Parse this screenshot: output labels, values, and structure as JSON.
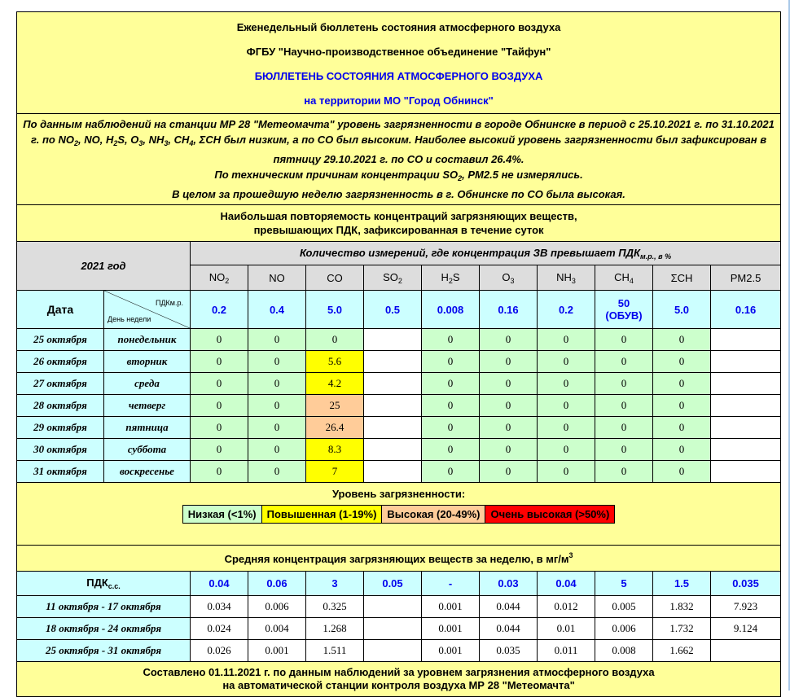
{
  "header": {
    "line1": "Еженедельный бюллетень состояния атмосферного воздуха",
    "line2": "ФГБУ \"Научно-производственное объединение \"Тайфун\"",
    "line3": "БЮЛЛЕТЕНЬ СОСТОЯНИЯ АТМОСФЕРНОГО ВОЗДУХА",
    "line4": "на территории МО \"Город Обнинск\""
  },
  "summary": {
    "p1a": "По данным наблюдений на станции МР 28 \"Метеомачта\" уровень загрязненности в городе Обнинске в период с 25.10.2021 г. по 31.10.2021 г. по NO",
    "p1b": ", NO, H",
    "p1c": "S, O",
    "p1d": ", NH",
    "p1e": ", CH",
    "p1f": ", ΣCH был низким, а по СО был высоким. Наиболее высокий уровень загрязненности был зафиксирован в пятницу 29.10.2021 г. по СО и составил 26.4%.",
    "p2a": "По техническим причинам концентрации SO",
    "p2b": ", PM2.5 не измерялись.",
    "p3": "В целом за прошедшую неделю загрязненность в г. Обнинске по СО была высокая.",
    "sub2": "2",
    "sub3": "3",
    "sub4": "4"
  },
  "daily": {
    "title1": "Наибольшая повторяемость концентраций загрязняющих веществ,",
    "title2": "превышающих ПДК, зафиксированная в течение суток",
    "year": "2021 год",
    "measure_label": "Количество измерений, где концентрация ЗВ превышает ПДК",
    "measure_sub": "м.р., в %",
    "pollutants": [
      {
        "base": "NO",
        "sub": "2"
      },
      {
        "base": "NO",
        "sub": ""
      },
      {
        "base": "CO",
        "sub": ""
      },
      {
        "base": "SO",
        "sub": "2"
      },
      {
        "base": "H",
        "sub": "2",
        "tail": "S"
      },
      {
        "base": "O",
        "sub": "3"
      },
      {
        "base": "NH",
        "sub": "3"
      },
      {
        "base": "CH",
        "sub": "4"
      },
      {
        "base": "ΣCH",
        "sub": ""
      },
      {
        "base": "PM2.5",
        "sub": ""
      }
    ],
    "date_label": "Дата",
    "diag_top": "ПДКм.р.",
    "diag_bottom": "День недели",
    "limits": [
      "0.2",
      "0.4",
      "5.0",
      "0.5",
      "0.008",
      "0.16",
      "0.2",
      "50\n(ОБУВ)",
      "5.0",
      "0.16"
    ],
    "limit_ch4_1": "50",
    "limit_ch4_2": "(ОБУВ)",
    "rows": [
      {
        "date": "25 октября",
        "day": "понедельник",
        "values": [
          "0",
          "0",
          "0",
          "",
          "0",
          "0",
          "0",
          "0",
          "0",
          ""
        ],
        "co_level": "low"
      },
      {
        "date": "26 октября",
        "day": "вторник",
        "values": [
          "0",
          "0",
          "5.6",
          "",
          "0",
          "0",
          "0",
          "0",
          "0",
          ""
        ],
        "co_level": "elevated"
      },
      {
        "date": "27 октября",
        "day": "среда",
        "values": [
          "0",
          "0",
          "4.2",
          "",
          "0",
          "0",
          "0",
          "0",
          "0",
          ""
        ],
        "co_level": "elevated"
      },
      {
        "date": "28 октября",
        "day": "четверг",
        "values": [
          "0",
          "0",
          "25",
          "",
          "0",
          "0",
          "0",
          "0",
          "0",
          ""
        ],
        "co_level": "high"
      },
      {
        "date": "29 октября",
        "day": "пятница",
        "values": [
          "0",
          "0",
          "26.4",
          "",
          "0",
          "0",
          "0",
          "0",
          "0",
          ""
        ],
        "co_level": "high"
      },
      {
        "date": "30 октября",
        "day": "суббота",
        "values": [
          "0",
          "0",
          "8.3",
          "",
          "0",
          "0",
          "0",
          "0",
          "0",
          ""
        ],
        "co_level": "elevated"
      },
      {
        "date": "31 октября",
        "day": "воскресенье",
        "values": [
          "0",
          "0",
          "7",
          "",
          "0",
          "0",
          "0",
          "0",
          "0",
          ""
        ],
        "co_level": "elevated"
      }
    ]
  },
  "legend": {
    "title": "Уровень загрязненности:",
    "items": [
      {
        "label": "Низкая (<1%)",
        "color": "#ccffcc"
      },
      {
        "label": "Повышенная (1-19%)",
        "color": "#ffff00"
      },
      {
        "label": "Высокая (20-49%)",
        "color": "#ffcc99"
      },
      {
        "label": "Очень высокая (>50%)",
        "color": "#ff0000"
      }
    ]
  },
  "weekly": {
    "title": "Средняя концентрация загрязняющих веществ за неделю, в мг/м",
    "title_sup": "3",
    "pdk_label": "ПДК",
    "pdk_sub": "с.с.",
    "limits": [
      "0.04",
      "0.06",
      "3",
      "0.05",
      "-",
      "0.03",
      "0.04",
      "5",
      "1.5",
      "0.035"
    ],
    "rows": [
      {
        "period": "11 октября - 17 октября",
        "values": [
          "0.034",
          "0.006",
          "0.325",
          "",
          "0.001",
          "0.044",
          "0.012",
          "0.005",
          "1.832",
          "7.923"
        ]
      },
      {
        "period": "18 октября - 24 октября",
        "values": [
          "0.024",
          "0.004",
          "1.268",
          "",
          "0.001",
          "0.044",
          "0.01",
          "0.006",
          "1.732",
          "9.124"
        ]
      },
      {
        "period": "25 октября - 31 октября",
        "values": [
          "0.026",
          "0.001",
          "1.511",
          "",
          "0.001",
          "0.035",
          "0.011",
          "0.008",
          "1.662",
          ""
        ]
      }
    ]
  },
  "footer": {
    "line1": "Составлено 01.11.2021 г. по данным наблюдений за уровнем загрязнения атмосферного воздуха",
    "line2": "на автоматической станции контроля воздуха МР 28 \"Метеомачта\""
  },
  "colors": {
    "header_bg": "#ffff99",
    "grey": "#dddddd",
    "cyan": "#ccffff",
    "accent_blue": "#0000ee"
  }
}
